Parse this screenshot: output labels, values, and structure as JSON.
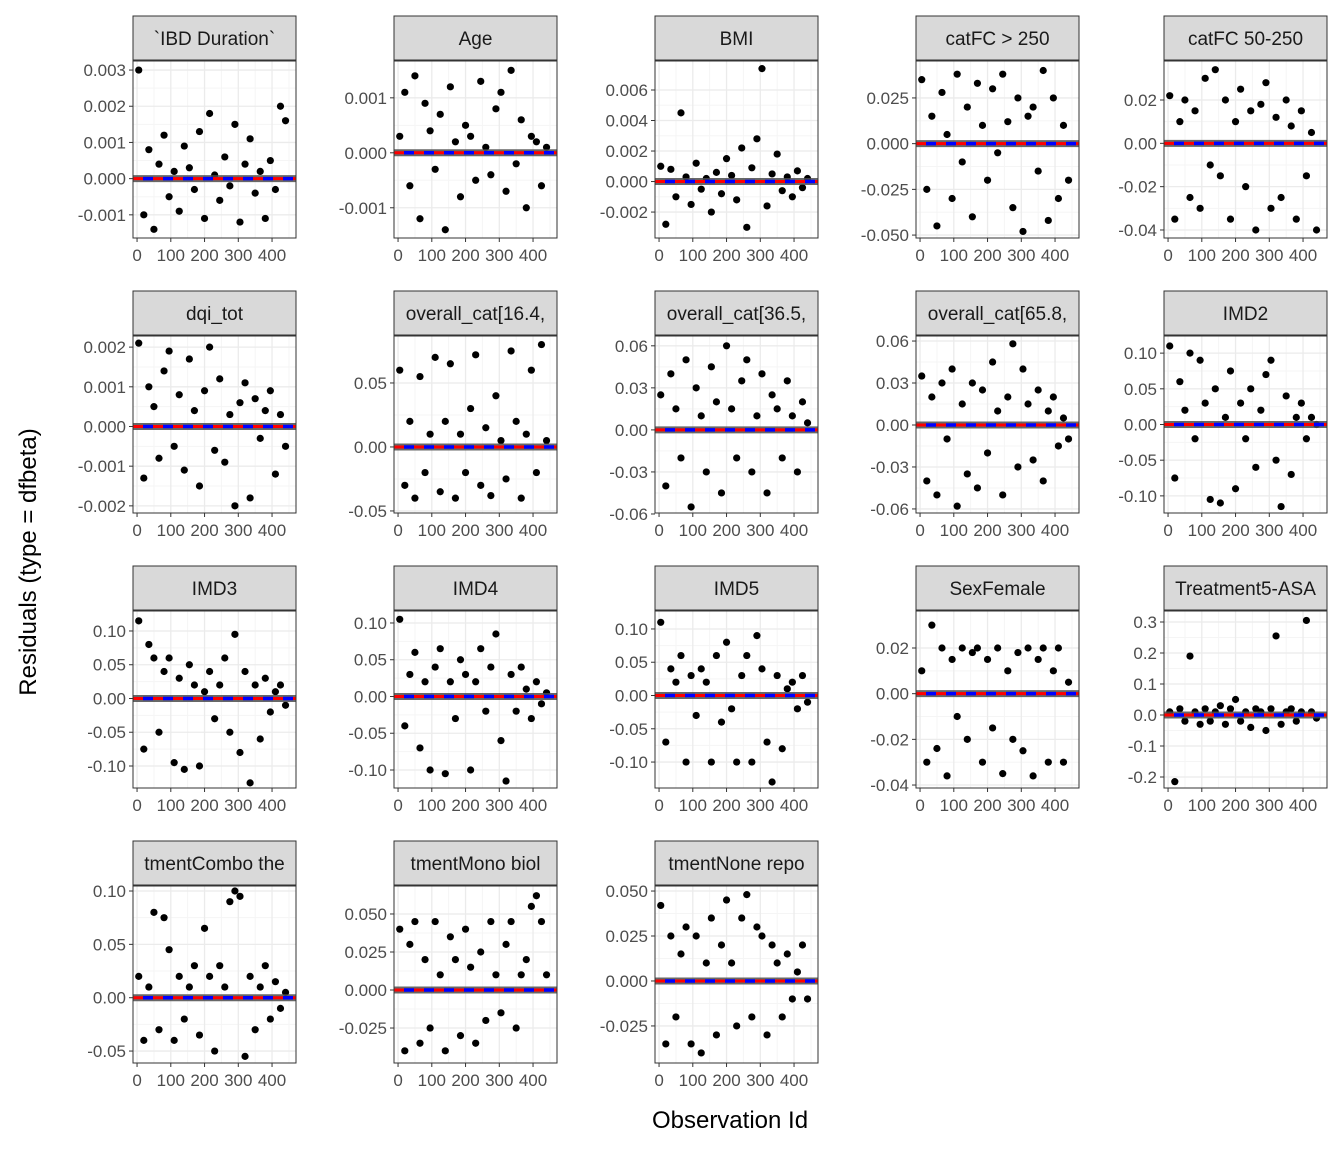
{
  "chart_data": {
    "type": "scatter",
    "xlabel": "Observation Id",
    "ylabel": "Residuals (type = dfbeta)",
    "xlim": [
      -12,
      471
    ],
    "x_ticks": [
      "0",
      "100",
      "200",
      "300",
      "400"
    ],
    "x_tick_values": [
      0,
      100,
      200,
      300,
      400
    ],
    "reference_line_y": 0,
    "colors": {
      "points": "#000000",
      "smooth": "#0000ff",
      "reference": "#ff0000",
      "smooth_band": "#4d4d4d",
      "strip": "#d9d9d9",
      "grid": "#ebebeb"
    },
    "x": [
      5,
      20,
      35,
      50,
      65,
      80,
      95,
      110,
      125,
      140,
      155,
      170,
      185,
      200,
      215,
      230,
      245,
      260,
      275,
      290,
      305,
      320,
      335,
      350,
      365,
      380,
      395,
      410,
      425,
      440
    ],
    "facets": [
      {
        "title": "`IBD Duration`",
        "ylim": [
          -0.00164,
          0.00325
        ],
        "ticks": [
          -0.001,
          0,
          0.001,
          0.002,
          0.003
        ],
        "tick_labels": [
          "-0.001",
          "0.000",
          "0.001",
          "0.002",
          "0.003"
        ],
        "y": [
          0.003,
          -0.001,
          0.0008,
          -0.0014,
          0.0004,
          0.0012,
          -0.0005,
          0.0002,
          -0.0009,
          0.0009,
          0.0003,
          -0.0003,
          0.0013,
          -0.0011,
          0.0018,
          0.0001,
          -0.0006,
          0.0006,
          -0.0002,
          0.0015,
          -0.0012,
          0.0004,
          0.0011,
          -0.0004,
          0.0002,
          -0.0011,
          0.0005,
          -0.0003,
          0.002,
          0.0016
        ]
      },
      {
        "title": "Age",
        "ylim": [
          -0.00155,
          0.00167
        ],
        "ticks": [
          -0.001,
          0,
          0.001
        ],
        "tick_labels": [
          "-0.001",
          "0.000",
          "0.001"
        ],
        "y": [
          0.0003,
          0.0011,
          -0.0006,
          0.0014,
          -0.0012,
          0.0009,
          0.0004,
          -0.0003,
          0.0007,
          -0.0014,
          0.0012,
          0.0002,
          -0.0008,
          0.0005,
          0.0003,
          -0.0005,
          0.0013,
          0.0001,
          -0.0004,
          0.0008,
          0.0011,
          -0.0007,
          0.0015,
          -0.0002,
          0.0006,
          -0.001,
          0.0003,
          0.0002,
          -0.0006,
          0.0001
        ]
      },
      {
        "title": "BMI",
        "ylim": [
          -0.0037,
          0.0079
        ],
        "ticks": [
          -0.002,
          0,
          0.002,
          0.004,
          0.006
        ],
        "tick_labels": [
          "-0.002",
          "0.000",
          "0.002",
          "0.004",
          "0.006"
        ],
        "y": [
          0.001,
          -0.0028,
          0.0008,
          -0.001,
          0.0045,
          0.0003,
          -0.0015,
          0.0012,
          -0.0005,
          0.0002,
          -0.002,
          0.0006,
          -0.0008,
          0.0015,
          0.0004,
          -0.0012,
          0.0022,
          -0.003,
          0.0009,
          0.0028,
          0.0074,
          -0.0016,
          0.0005,
          0.0018,
          -0.0006,
          0.0003,
          -0.001,
          0.0007,
          -0.0004,
          0.0002
        ]
      },
      {
        "title": "catFC > 250",
        "ylim": [
          -0.0516,
          0.0452
        ],
        "ticks": [
          -0.05,
          -0.025,
          0,
          0.025
        ],
        "tick_labels": [
          "-0.050",
          "-0.025",
          "0.000",
          "0.025"
        ],
        "y": [
          0.035,
          -0.025,
          0.015,
          -0.045,
          0.028,
          0.005,
          -0.03,
          0.038,
          -0.01,
          0.02,
          -0.04,
          0.033,
          0.01,
          -0.02,
          0.03,
          -0.005,
          0.038,
          0.012,
          -0.035,
          0.025,
          -0.048,
          0.015,
          0.02,
          -0.015,
          0.04,
          -0.042,
          0.025,
          -0.03,
          0.01,
          -0.02
        ]
      },
      {
        "title": "catFC 50-250",
        "ylim": [
          -0.0437,
          0.038
        ],
        "ticks": [
          -0.04,
          -0.02,
          0,
          0.02
        ],
        "tick_labels": [
          "-0.04",
          "-0.02",
          "0.00",
          "0.02"
        ],
        "y": [
          0.022,
          -0.035,
          0.01,
          0.02,
          -0.025,
          0.015,
          -0.03,
          0.03,
          -0.01,
          0.034,
          -0.015,
          0.02,
          -0.035,
          0.01,
          0.025,
          -0.02,
          0.015,
          -0.04,
          0.018,
          0.028,
          -0.03,
          0.012,
          -0.025,
          0.02,
          0.008,
          -0.035,
          0.015,
          -0.015,
          0.005,
          -0.04
        ]
      },
      {
        "title": "dqi_tot",
        "ylim": [
          -0.00218,
          0.00228
        ],
        "ticks": [
          -0.002,
          -0.001,
          0,
          0.001,
          0.002
        ],
        "tick_labels": [
          "-0.002",
          "-0.001",
          "0.000",
          "0.001",
          "0.002"
        ],
        "y": [
          0.0021,
          -0.0013,
          0.001,
          0.0005,
          -0.0008,
          0.0014,
          0.0019,
          -0.0005,
          0.0008,
          -0.0011,
          0.0017,
          0.0004,
          -0.0015,
          0.0009,
          0.002,
          -0.0006,
          0.0012,
          -0.0009,
          0.0003,
          -0.002,
          0.0006,
          0.0011,
          -0.0018,
          0.0007,
          -0.0003,
          0.0004,
          0.0009,
          -0.0012,
          0.0003,
          -0.0005
        ]
      },
      {
        "title": "overall_cat[16.4,",
        "ylim": [
          -0.0516,
          0.0867
        ],
        "ticks": [
          -0.05,
          0,
          0.05
        ],
        "tick_labels": [
          "-0.05",
          "0.00",
          "0.05"
        ],
        "y": [
          0.06,
          -0.03,
          0.02,
          -0.04,
          0.055,
          -0.02,
          0.01,
          0.07,
          -0.035,
          0.02,
          0.065,
          -0.04,
          0.01,
          -0.02,
          0.03,
          0.072,
          -0.03,
          0.015,
          -0.038,
          0.04,
          0.005,
          -0.025,
          0.075,
          0.02,
          -0.04,
          0.01,
          0.06,
          -0.02,
          0.08,
          0.005
        ]
      },
      {
        "title": "overall_cat[36.5,",
        "ylim": [
          -0.0593,
          0.067
        ],
        "ticks": [
          -0.06,
          -0.03,
          0,
          0.03,
          0.06
        ],
        "tick_labels": [
          "-0.06",
          "-0.03",
          "0.00",
          "0.03",
          "0.06"
        ],
        "y": [
          0.025,
          -0.04,
          0.04,
          0.015,
          -0.02,
          0.05,
          -0.055,
          0.03,
          0.01,
          -0.03,
          0.045,
          0.02,
          -0.045,
          0.06,
          0.015,
          -0.02,
          0.035,
          0.05,
          -0.03,
          0.01,
          0.04,
          -0.045,
          0.025,
          0.015,
          -0.02,
          0.035,
          0.01,
          -0.03,
          0.02,
          0.005
        ]
      },
      {
        "title": "overall_cat[65.8,",
        "ylim": [
          -0.0629,
          0.0636
        ],
        "ticks": [
          -0.06,
          -0.03,
          0,
          0.03,
          0.06
        ],
        "tick_labels": [
          "-0.06",
          "-0.03",
          "0.00",
          "0.03",
          "0.06"
        ],
        "y": [
          0.035,
          -0.04,
          0.02,
          -0.05,
          0.03,
          -0.01,
          0.04,
          -0.058,
          0.015,
          -0.035,
          0.03,
          -0.045,
          0.025,
          -0.02,
          0.045,
          0.01,
          -0.05,
          0.02,
          0.058,
          -0.03,
          0.04,
          0.015,
          -0.025,
          0.025,
          -0.04,
          0.01,
          0.02,
          -0.015,
          0.005,
          -0.01
        ]
      },
      {
        "title": "IMD2",
        "ylim": [
          -0.124,
          0.124
        ],
        "ticks": [
          -0.1,
          -0.05,
          0,
          0.05,
          0.1
        ],
        "tick_labels": [
          "-0.10",
          "-0.05",
          "0.00",
          "0.05",
          "0.10"
        ],
        "y": [
          0.11,
          -0.075,
          0.06,
          0.02,
          0.1,
          -0.02,
          0.09,
          0.03,
          -0.105,
          0.05,
          -0.11,
          0.01,
          0.075,
          -0.09,
          0.03,
          -0.02,
          0.05,
          -0.06,
          0.02,
          0.07,
          0.09,
          -0.05,
          -0.115,
          0.04,
          -0.07,
          0.01,
          0.03,
          -0.02,
          0.01,
          0.0
        ]
      },
      {
        "title": "IMD3",
        "ylim": [
          -0.1326,
          0.1296
        ],
        "ticks": [
          -0.1,
          -0.05,
          0,
          0.05,
          0.1
        ],
        "tick_labels": [
          "-0.10",
          "-0.05",
          "0.00",
          "0.05",
          "0.10"
        ],
        "y": [
          0.115,
          -0.075,
          0.08,
          0.06,
          -0.05,
          0.04,
          0.06,
          -0.095,
          0.03,
          -0.105,
          0.05,
          0.02,
          -0.1,
          0.01,
          0.04,
          -0.03,
          0.02,
          0.06,
          -0.05,
          0.095,
          -0.08,
          0.04,
          -0.125,
          0.02,
          -0.06,
          0.03,
          -0.02,
          0.01,
          0.02,
          -0.01
        ]
      },
      {
        "title": "IMD4",
        "ylim": [
          -0.1245,
          0.1163
        ],
        "ticks": [
          -0.1,
          -0.05,
          0,
          0.05,
          0.1
        ],
        "tick_labels": [
          "-0.10",
          "-0.05",
          "0.00",
          "0.05",
          "0.10"
        ],
        "y": [
          0.105,
          -0.04,
          0.03,
          0.06,
          -0.07,
          0.02,
          -0.1,
          0.04,
          0.065,
          -0.105,
          0.02,
          -0.03,
          0.05,
          0.03,
          -0.1,
          0.02,
          0.065,
          -0.02,
          0.04,
          0.085,
          -0.06,
          -0.115,
          0.03,
          -0.02,
          0.04,
          0.01,
          -0.03,
          0.02,
          -0.01,
          0.005
        ]
      },
      {
        "title": "IMD5",
        "ylim": [
          -0.139,
          0.127
        ],
        "ticks": [
          -0.1,
          -0.05,
          0,
          0.05,
          0.1
        ],
        "tick_labels": [
          "-0.10",
          "-0.05",
          "0.00",
          "0.05",
          "0.10"
        ],
        "y": [
          0.11,
          -0.07,
          0.04,
          0.02,
          0.06,
          -0.1,
          0.03,
          -0.03,
          0.04,
          0.02,
          -0.1,
          0.06,
          -0.04,
          0.08,
          -0.02,
          -0.1,
          0.03,
          0.06,
          -0.1,
          0.09,
          0.04,
          -0.07,
          -0.13,
          0.03,
          -0.08,
          0.01,
          0.02,
          -0.02,
          0.03,
          -0.01
        ]
      },
      {
        "title": "SexFemale",
        "ylim": [
          -0.0413,
          0.0362
        ],
        "ticks": [
          -0.04,
          -0.02,
          0,
          0.02
        ],
        "tick_labels": [
          "-0.04",
          "-0.02",
          "0.00",
          "0.02"
        ],
        "y": [
          0.01,
          -0.03,
          0.03,
          -0.024,
          0.02,
          -0.036,
          0.015,
          -0.01,
          0.02,
          -0.02,
          0.018,
          0.02,
          -0.03,
          0.015,
          -0.015,
          0.02,
          -0.035,
          0.01,
          -0.02,
          0.018,
          -0.025,
          0.02,
          -0.036,
          0.015,
          0.02,
          -0.03,
          0.01,
          0.02,
          -0.03,
          0.005
        ]
      },
      {
        "title": "Treatment5-ASA",
        "ylim": [
          -0.2355,
          0.3355
        ],
        "ticks": [
          -0.2,
          -0.1,
          0,
          0.1,
          0.2,
          0.3
        ],
        "tick_labels": [
          "-0.2",
          "-0.1",
          "0.0",
          "0.1",
          "0.2",
          "0.3"
        ],
        "y": [
          0.01,
          -0.215,
          0.02,
          -0.02,
          0.19,
          0.01,
          -0.03,
          0.02,
          -0.02,
          0.01,
          0.03,
          -0.03,
          0.02,
          0.05,
          -0.02,
          0.01,
          -0.04,
          0.02,
          0.01,
          -0.05,
          0.02,
          0.255,
          -0.03,
          0.01,
          0.02,
          -0.02,
          0.01,
          0.305,
          0.01,
          -0.01
        ]
      },
      {
        "title": "tmentCombo the",
        "ylim": [
          -0.0612,
          0.1047
        ],
        "ticks": [
          -0.05,
          0,
          0.05,
          0.1
        ],
        "tick_labels": [
          "-0.05",
          "0.00",
          "0.05",
          "0.10"
        ],
        "y": [
          0.02,
          -0.04,
          0.01,
          0.08,
          -0.03,
          0.075,
          0.045,
          -0.04,
          0.02,
          -0.02,
          0.01,
          0.03,
          -0.035,
          0.065,
          0.02,
          -0.05,
          0.03,
          0.01,
          0.09,
          0.1,
          0.095,
          -0.055,
          0.02,
          -0.03,
          0.01,
          0.03,
          -0.02,
          0.015,
          -0.01,
          0.005
        ]
      },
      {
        "title": "tmentMono biol",
        "ylim": [
          -0.048,
          0.0684
        ],
        "ticks": [
          -0.025,
          0,
          0.025,
          0.05
        ],
        "tick_labels": [
          "-0.025",
          "0.000",
          "0.025",
          "0.050"
        ],
        "y": [
          0.04,
          -0.04,
          0.03,
          0.045,
          -0.035,
          0.02,
          -0.025,
          0.045,
          0.01,
          -0.04,
          0.035,
          0.02,
          -0.03,
          0.04,
          0.015,
          -0.035,
          0.025,
          -0.02,
          0.045,
          0.01,
          -0.015,
          0.03,
          0.045,
          -0.025,
          0.01,
          0.02,
          0.055,
          0.062,
          0.045,
          0.01
        ]
      },
      {
        "title": "tmentNone repo",
        "ylim": [
          -0.0456,
          0.0528
        ],
        "ticks": [
          -0.025,
          0,
          0.025,
          0.05
        ],
        "tick_labels": [
          "-0.025",
          "0.000",
          "0.025",
          "0.050"
        ],
        "y": [
          0.042,
          -0.035,
          0.025,
          -0.02,
          0.015,
          0.03,
          -0.035,
          0.025,
          -0.04,
          0.01,
          0.035,
          -0.03,
          0.02,
          0.045,
          0.01,
          -0.025,
          0.035,
          0.048,
          -0.02,
          0.03,
          0.025,
          -0.03,
          0.02,
          0.01,
          -0.02,
          0.015,
          -0.01,
          0.005,
          0.02,
          -0.01
        ]
      }
    ]
  }
}
